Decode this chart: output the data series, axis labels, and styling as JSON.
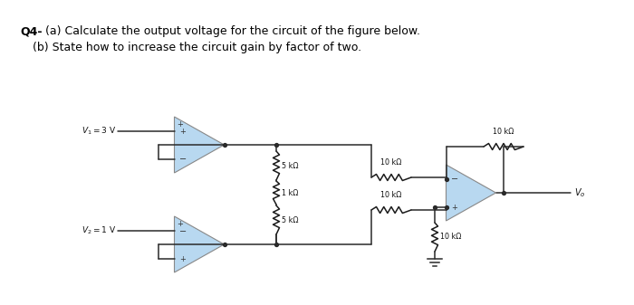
{
  "title_line1": "Q4- (a) Calculate the output voltage for the circuit of the figure below.",
  "title_line2": "(b) State how to increase the circuit gain by factor of two.",
  "bg_color": "#ffffff",
  "triangle_color": "#b8d8f0",
  "wire_color": "#2a2a2a",
  "resistor_color": "#1a1a1a",
  "res_5k_top": "5 kΩ",
  "res_1k": "1 kΩ",
  "res_5k_bot": "5 kΩ",
  "res_10k_fb": "10 kΩ",
  "res_10k_top": "10 kΩ",
  "res_10k_bot": "10 kΩ",
  "res_10k_gnd": "10 kΩ",
  "v1_label": "$V_1=3$ V",
  "v2_label": "$V_2=1$ V",
  "vo_label": "$V_o$"
}
